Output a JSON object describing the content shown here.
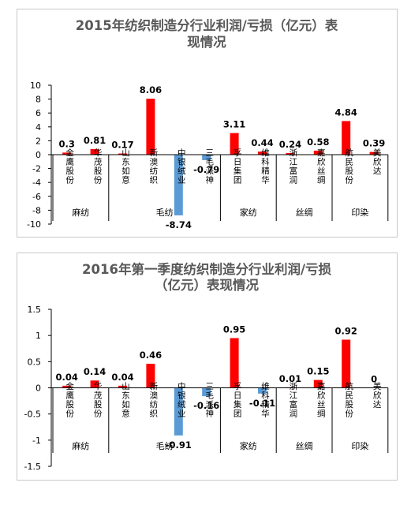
{
  "chart_data": [
    {
      "type": "bar",
      "title_lines": [
        "2015年纺织制造分行业利润/亏损（亿元）表",
        "现情况"
      ],
      "categories": [
        "金鹰股份",
        "华茂股份",
        "山东如意",
        "新澳纺织",
        "中银绒业",
        "三毛派神",
        "孚日集团",
        "维科精华",
        "浙江富润",
        "嘉欣丝绸",
        "航民股份",
        "美欣达"
      ],
      "groups": [
        {
          "name": "麻纺",
          "count": 2
        },
        {
          "name": "毛纺",
          "count": 4
        },
        {
          "name": "家纺",
          "count": 2
        },
        {
          "name": "丝绸",
          "count": 2
        },
        {
          "name": "印染",
          "count": 2
        }
      ],
      "values": [
        0.3,
        0.81,
        0.17,
        8.06,
        -8.74,
        -0.79,
        3.11,
        0.44,
        0.24,
        0.58,
        4.84,
        0.39
      ],
      "data_labels": [
        "0.3",
        "0.81",
        "0.17",
        "8.06",
        "-8.74",
        "-0.79",
        "3.11",
        "0.44",
        "0.24",
        "0.58",
        "4.84",
        "0.39"
      ],
      "yticks": [
        10,
        8,
        6,
        4,
        2,
        0,
        -2,
        -4,
        -6,
        -8,
        -10
      ],
      "ylim": [
        -10,
        10
      ],
      "colors": {
        "positive": "#ff0000",
        "negative": "#5b9bd5"
      },
      "grid": false,
      "legend": "none"
    },
    {
      "type": "bar",
      "title_lines": [
        "2016年第一季度纺织制造分行业利润/亏损",
        "（亿元）表现情况"
      ],
      "categories": [
        "金鹰股份",
        "华茂股份",
        "山东如意",
        "新澳纺织",
        "中银绒业",
        "三毛派神",
        "孚日集团",
        "维科精华",
        "浙江富润",
        "嘉欣丝绸",
        "航民股份",
        "美欣达"
      ],
      "groups": [
        {
          "name": "麻纺",
          "count": 2
        },
        {
          "name": "毛纺",
          "count": 4
        },
        {
          "name": "家纺",
          "count": 2
        },
        {
          "name": "丝绸",
          "count": 2
        },
        {
          "name": "印染",
          "count": 2
        }
      ],
      "values": [
        0.04,
        0.14,
        0.04,
        0.46,
        -0.91,
        -0.16,
        0.95,
        -0.11,
        0.01,
        0.15,
        0.92,
        0
      ],
      "data_labels": [
        "0.04",
        "0.14",
        "0.04",
        "0.46",
        "-0.91",
        "-0.16",
        "0.95",
        "-0.11",
        "0.01",
        "0.15",
        "0.92",
        "0"
      ],
      "yticks": [
        1.5,
        1,
        0.5,
        0,
        -0.5,
        -1,
        -1.5
      ],
      "ylim": [
        -1.5,
        1.5
      ],
      "colors": {
        "positive": "#ff0000",
        "negative": "#5b9bd5"
      },
      "grid": false,
      "legend": "none"
    }
  ]
}
